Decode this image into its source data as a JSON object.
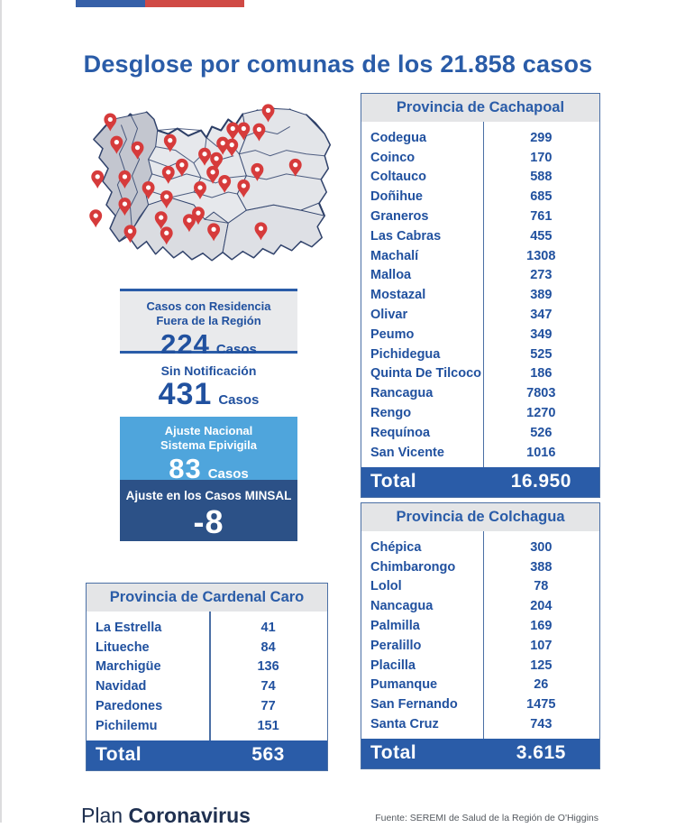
{
  "page": {
    "title": "Desglose por comunas de los 21.858 casos",
    "brand_regular": "Plan",
    "brand_bold": "Coronavirus",
    "source": "Fuente: SEREMI de Salud de la Región de O'Higgins"
  },
  "colors": {
    "title_blue": "#2A5CA8",
    "text_blue": "#21519F",
    "light_blue_box": "#4FA5DC",
    "dark_blue_box": "#2C5187",
    "flag_blue": "#3660A8",
    "flag_red": "#D04A45",
    "pin_red": "#D63B3B",
    "table_header_gray": "#E4E5E7",
    "stat_box_gray": "#E9EAEC",
    "total_bar_blue": "#2A5CA8"
  },
  "stats": [
    {
      "line1": "Casos con Residencia",
      "line2": "Fuera de la Región",
      "value": "224",
      "unit": "Casos"
    },
    {
      "line1": "Sin Notificación",
      "line2": "",
      "value": "431",
      "unit": "Casos"
    },
    {
      "line1": "Ajuste Nacional",
      "line2": "Sistema Epivigila",
      "value": "83",
      "unit": "Casos"
    },
    {
      "line1": "Ajuste en los Casos MINSAL",
      "line2": "",
      "value": "-8",
      "unit": ""
    }
  ],
  "tables": {
    "cachapoal": {
      "title": "Provincia de Cachapoal",
      "rows": [
        {
          "name": "Codegua",
          "value": "299"
        },
        {
          "name": "Coinco",
          "value": "170"
        },
        {
          "name": "Coltauco",
          "value": "588"
        },
        {
          "name": "Doñihue",
          "value": "685"
        },
        {
          "name": "Graneros",
          "value": "761"
        },
        {
          "name": "Las Cabras",
          "value": "455"
        },
        {
          "name": "Machalí",
          "value": "1308"
        },
        {
          "name": "Malloa",
          "value": "273"
        },
        {
          "name": "Mostazal",
          "value": "389"
        },
        {
          "name": "Olivar",
          "value": "347"
        },
        {
          "name": "Peumo",
          "value": "349"
        },
        {
          "name": "Pichidegua",
          "value": "525"
        },
        {
          "name": "Quinta De Tilcoco",
          "value": "186"
        },
        {
          "name": "Rancagua",
          "value": "7803"
        },
        {
          "name": "Rengo",
          "value": "1270"
        },
        {
          "name": "Requínoa",
          "value": "526"
        },
        {
          "name": "San Vicente",
          "value": "1016"
        }
      ],
      "total_label": "Total",
      "total": "16.950"
    },
    "colchagua": {
      "title": "Provincia de Colchagua",
      "rows": [
        {
          "name": "Chépica",
          "value": "300"
        },
        {
          "name": "Chimbarongo",
          "value": "388"
        },
        {
          "name": "Lolol",
          "value": "78"
        },
        {
          "name": "Nancagua",
          "value": "204"
        },
        {
          "name": "Palmilla",
          "value": "169"
        },
        {
          "name": "Peralillo",
          "value": "107"
        },
        {
          "name": "Placilla",
          "value": "125"
        },
        {
          "name": "Pumanque",
          "value": "26"
        },
        {
          "name": "San Fernando",
          "value": "1475"
        },
        {
          "name": "Santa Cruz",
          "value": "743"
        }
      ],
      "total_label": "Total",
      "total": "3.615"
    },
    "cardenal_caro": {
      "title": "Provincia de Cardenal Caro",
      "rows": [
        {
          "name": "La Estrella",
          "value": "41"
        },
        {
          "name": "Litueche",
          "value": "84"
        },
        {
          "name": "Marchigüe",
          "value": "136"
        },
        {
          "name": "Navidad",
          "value": "74"
        },
        {
          "name": "Paredones",
          "value": "77"
        },
        {
          "name": "Pichilemu",
          "value": "151"
        }
      ],
      "total_label": "Total",
      "total": "563"
    }
  }
}
